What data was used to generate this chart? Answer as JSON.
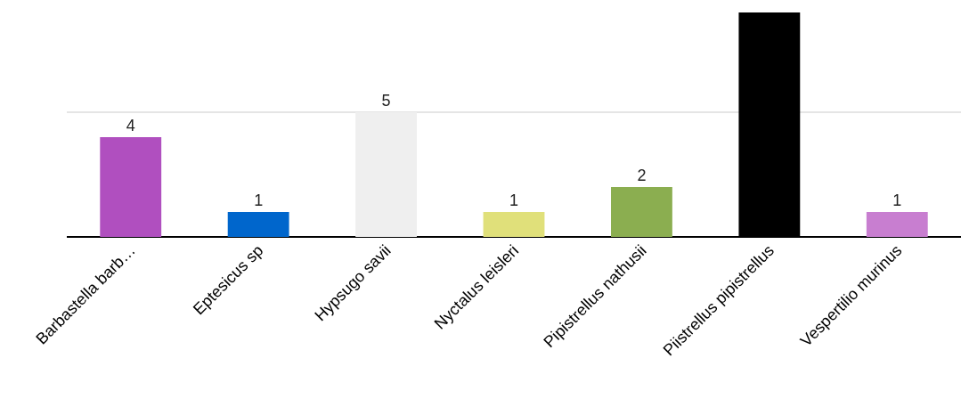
{
  "chart_data": {
    "type": "bar",
    "categories": [
      "Barbastella barb…",
      "Eptesicus sp",
      "Hypsugo savii",
      "Nyctalus leisleri",
      "Pipistrellus nathusii",
      "Piistrellus pipistrellus",
      "Vespertilio murinus"
    ],
    "values": [
      4,
      1,
      5,
      1,
      2,
      9,
      1
    ],
    "value_labels": [
      "4",
      "1",
      "5",
      "1",
      "2",
      null,
      "1"
    ],
    "colors": [
      "#b04fbf",
      "#0066cc",
      "#efefef",
      "#e0e07a",
      "#8bae50",
      "#000000",
      "#c87ed0"
    ],
    "ylim": [
      0,
      9.5
    ],
    "ref_lines": [
      {
        "axis": "y",
        "value": 5,
        "color": "#dddddd"
      }
    ],
    "tick_labels": "x"
  }
}
